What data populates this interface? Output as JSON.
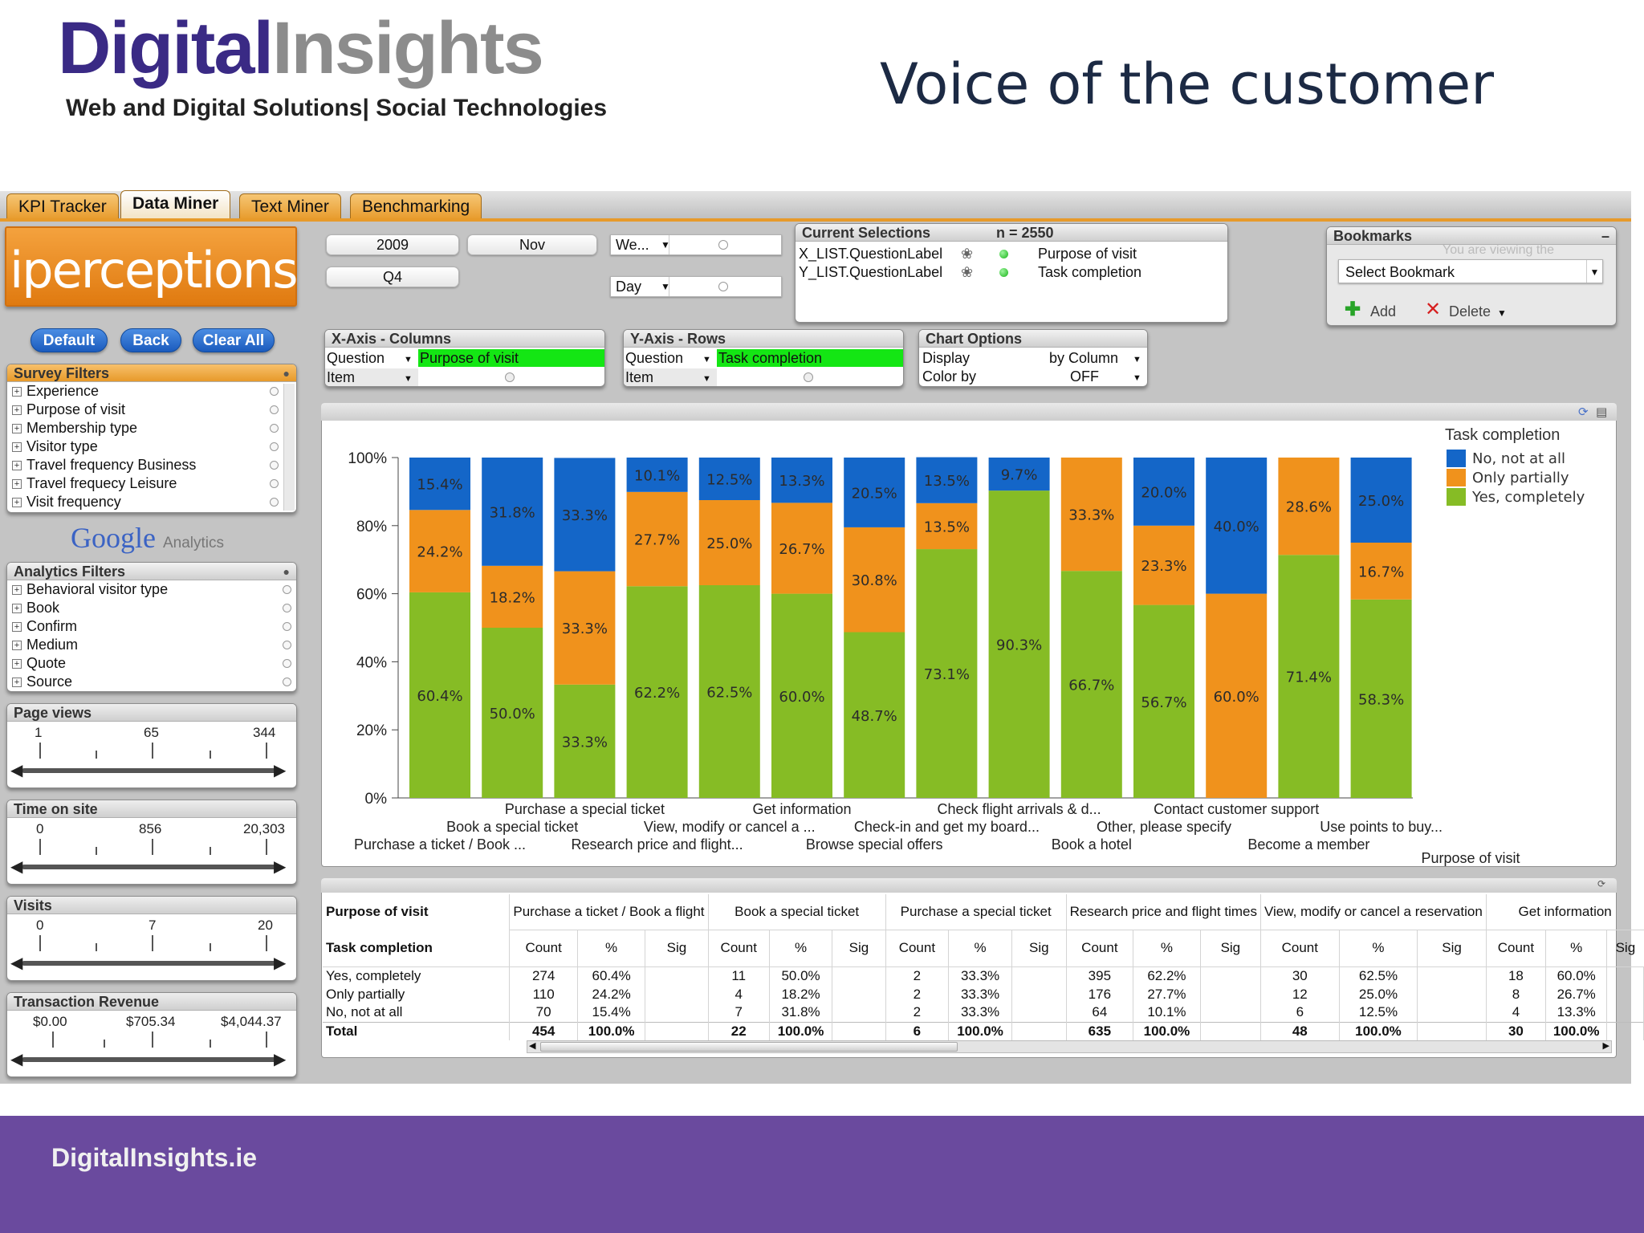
{
  "header": {
    "logo_part1": "Digital",
    "logo_part2": "Insights",
    "tagline": "Web and Digital Solutions| Social Technologies",
    "slide_title": "Voice of the customer"
  },
  "tabs": [
    {
      "label": "KPI Tracker",
      "active": false
    },
    {
      "label": "Data Miner",
      "active": true
    },
    {
      "label": "Text Miner",
      "active": false
    },
    {
      "label": "Benchmarking",
      "active": false
    }
  ],
  "left": {
    "brand": "iperceptions",
    "buttons": {
      "default": "Default",
      "back": "Back",
      "clear_all": "Clear All"
    },
    "survey_filters": {
      "title": "Survey Filters",
      "items": [
        "Experience",
        "Purpose of visit",
        "Membership type",
        "Visitor type",
        "Travel frequency Business",
        "Travel frequecy Leisure",
        "Visit frequency"
      ]
    },
    "google": {
      "word": "Google",
      "suffix": "Analytics"
    },
    "analytics_filters": {
      "title": "Analytics Filters",
      "items": [
        "Behavioral visitor type",
        "Book",
        "Confirm",
        "Medium",
        "Quote",
        "Source"
      ]
    },
    "sliders": [
      {
        "title": "Page views",
        "min": "1",
        "mid": "65",
        "max": "344"
      },
      {
        "title": "Time on site",
        "min": "0",
        "mid": "856",
        "max": "20,303"
      },
      {
        "title": "Visits",
        "min": "0",
        "mid": "7",
        "max": "20"
      },
      {
        "title": "Transaction Revenue",
        "min": "$0.00",
        "mid": "$705.34",
        "max": "$4,044.37"
      }
    ]
  },
  "date_controls": {
    "year": "2009",
    "month": "Nov",
    "quarter": "Q4",
    "week": "We...",
    "day": "Day"
  },
  "current_selections": {
    "title": "Current Selections",
    "n": "n = 2550",
    "rows": [
      {
        "field": "X_LIST.QuestionLabel",
        "value": "Purpose of visit"
      },
      {
        "field": "Y_LIST.QuestionLabel",
        "value": "Task completion"
      }
    ]
  },
  "bookmarks": {
    "title": "Bookmarks",
    "faded": "You are viewing the",
    "select": "Select Bookmark",
    "add": "Add",
    "delete": "Delete"
  },
  "x_axis": {
    "title": "X-Axis - Columns",
    "r1_label": "Question",
    "r1_value": "Purpose of visit",
    "r2_label": "Item"
  },
  "y_axis": {
    "title": "Y-Axis - Rows",
    "r1_label": "Question",
    "r1_value": "Task completion",
    "r2_label": "Item"
  },
  "chart_options": {
    "title": "Chart Options",
    "display_label": "Display",
    "display_value": "by Column",
    "color_label": "Color by",
    "color_value": "OFF"
  },
  "colors": {
    "yes": "#86bc25",
    "partial": "#f0921c",
    "no": "#1466c8"
  },
  "chart_data": {
    "type": "bar",
    "stacked": true,
    "percent": true,
    "xlabel": "Purpose of visit",
    "legend_title": "Task completion",
    "legend_position": "top-right",
    "ylim": [
      0,
      100
    ],
    "y_ticks": [
      "0%",
      "20%",
      "40%",
      "60%",
      "80%",
      "100%"
    ],
    "categories": [
      "Purchase a ticket / Book ...",
      "Book a special ticket",
      "Purchase a special ticket",
      "Research price and flight...",
      "View, modify or cancel a ...",
      "Get information",
      "Browse special offers",
      "Check-in and get my board...",
      "Check flight arrivals & d...",
      "Book a hotel",
      "Other, please specify",
      "Contact customer support",
      "Become a member",
      "Use points to buy..."
    ],
    "series": [
      {
        "name": "Yes, completely",
        "values": [
          60.4,
          50.0,
          33.3,
          62.2,
          62.5,
          60.0,
          48.7,
          73.1,
          90.3,
          66.7,
          56.7,
          0,
          71.4,
          58.3
        ]
      },
      {
        "name": "Only partially",
        "values": [
          24.2,
          18.2,
          33.3,
          27.7,
          25.0,
          26.7,
          30.8,
          13.5,
          0,
          33.3,
          23.3,
          60.0,
          28.6,
          16.7
        ]
      },
      {
        "name": "No, not at all",
        "values": [
          15.4,
          31.8,
          33.3,
          10.1,
          12.5,
          13.3,
          20.5,
          13.5,
          9.7,
          0,
          20.0,
          40.0,
          0,
          25.0
        ]
      }
    ]
  },
  "table": {
    "corner_top": "Purpose of visit",
    "corner_bottom": "Task completion",
    "groups": [
      "Purchase a ticket / Book a flight",
      "Book a special ticket",
      "Purchase a special ticket",
      "Research price and flight times",
      "View, modify or cancel a reservation",
      "Get information"
    ],
    "sub": [
      "Count",
      "%",
      "Sig"
    ],
    "rows": [
      {
        "label": "Yes, completely",
        "cells": [
          [
            "274",
            "60.4%",
            ""
          ],
          [
            "11",
            "50.0%",
            ""
          ],
          [
            "2",
            "33.3%",
            ""
          ],
          [
            "395",
            "62.2%",
            ""
          ],
          [
            "30",
            "62.5%",
            ""
          ],
          [
            "18",
            "60.0%",
            ""
          ]
        ]
      },
      {
        "label": "Only partially",
        "cells": [
          [
            "110",
            "24.2%",
            ""
          ],
          [
            "4",
            "18.2%",
            ""
          ],
          [
            "2",
            "33.3%",
            ""
          ],
          [
            "176",
            "27.7%",
            ""
          ],
          [
            "12",
            "25.0%",
            ""
          ],
          [
            "8",
            "26.7%",
            ""
          ]
        ]
      },
      {
        "label": "No, not at all",
        "cells": [
          [
            "70",
            "15.4%",
            ""
          ],
          [
            "7",
            "31.8%",
            ""
          ],
          [
            "2",
            "33.3%",
            ""
          ],
          [
            "64",
            "10.1%",
            ""
          ],
          [
            "6",
            "12.5%",
            ""
          ],
          [
            "4",
            "13.3%",
            ""
          ]
        ]
      },
      {
        "label": "Total",
        "cells": [
          [
            "454",
            "100.0%",
            ""
          ],
          [
            "22",
            "100.0%",
            ""
          ],
          [
            "6",
            "100.0%",
            ""
          ],
          [
            "635",
            "100.0%",
            ""
          ],
          [
            "48",
            "100.0%",
            ""
          ],
          [
            "30",
            "100.0%",
            ""
          ]
        ]
      }
    ]
  },
  "footer": {
    "label": "DigitalInsights.ie"
  }
}
